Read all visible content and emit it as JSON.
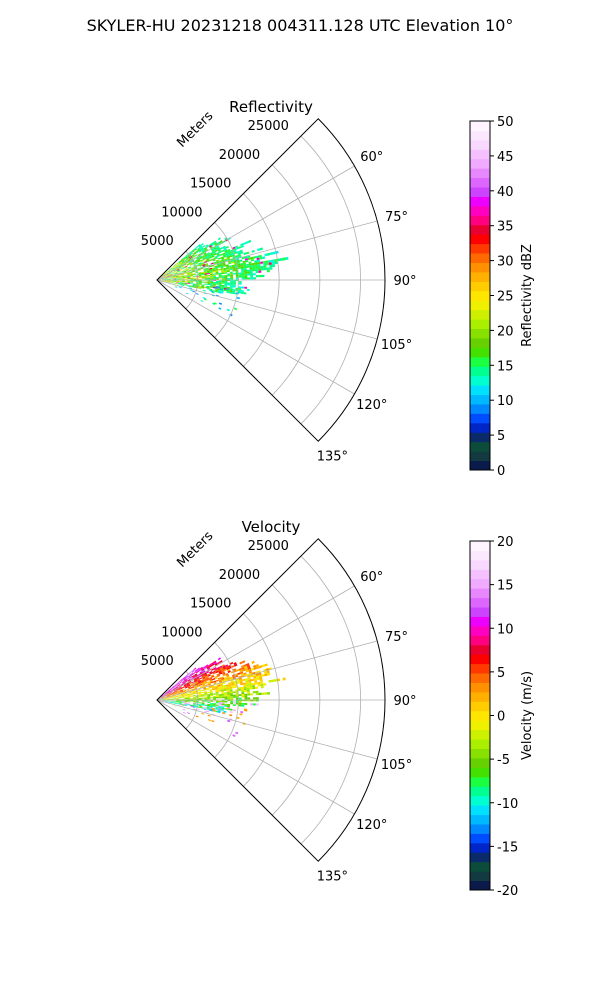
{
  "figure_title": "SKYLER-HU  20231218  004311.128 UTC Elevation 10°",
  "polar_axes": {
    "radial_label": "Meters",
    "radial_ticks": [
      "5000",
      "10000",
      "15000",
      "20000",
      "25000"
    ],
    "angle_ticks": [
      "60°",
      "75°",
      "90°",
      "105°",
      "120°",
      "135°"
    ]
  },
  "chart_data": [
    {
      "type": "heatmap",
      "projection": "polar-sector",
      "title": "Reflectivity",
      "theta_range_deg": [
        45,
        135
      ],
      "r_range_m": [
        0,
        28000
      ],
      "grid": true,
      "colorbar": {
        "label": "Reflectivity dBZ",
        "range": [
          0,
          50
        ],
        "ticks": [
          "0",
          "5",
          "10",
          "15",
          "20",
          "25",
          "30",
          "35",
          "40",
          "45",
          "50"
        ],
        "colors": [
          "#0a1a4a",
          "#123a40",
          "#0b4d3a",
          "#0a2a6a",
          "#0026c8",
          "#004cff",
          "#0088ff",
          "#00b8ff",
          "#00e0ff",
          "#00ffd0",
          "#00ff90",
          "#1aff40",
          "#44e000",
          "#66d000",
          "#88e000",
          "#aaee00",
          "#ccf000",
          "#eef000",
          "#ffe600",
          "#ffcc00",
          "#ffb000",
          "#ff9000",
          "#ff6a00",
          "#ff3a00",
          "#ff0000",
          "#e80030",
          "#ff0080",
          "#ff00c0",
          "#ee00ff",
          "#cc44ff",
          "#dd66ff",
          "#e888ff",
          "#f0aaff",
          "#f4c0ff",
          "#f8d8ff",
          "#fbe8ff",
          "#fff4ff"
        ],
        "legend_placement": "right"
      },
      "echo_region": {
        "theta_deg": [
          50,
          101
        ],
        "r_m": [
          0,
          14500
        ],
        "dominant_values_dbz": [
          12,
          28
        ]
      }
    },
    {
      "type": "heatmap",
      "projection": "polar-sector",
      "title": "Velocity",
      "theta_range_deg": [
        45,
        135
      ],
      "r_range_m": [
        0,
        28000
      ],
      "grid": true,
      "colorbar": {
        "label": "Velocity (m/s)",
        "range": [
          -20,
          20
        ],
        "ticks": [
          "-20",
          "-15",
          "-10",
          "-5",
          "0",
          "5",
          "10",
          "15",
          "20"
        ],
        "colors": [
          "#0a1a4a",
          "#123a40",
          "#0b4d3a",
          "#0a2a6a",
          "#0026c8",
          "#004cff",
          "#0088ff",
          "#00b8ff",
          "#00e0ff",
          "#00ffd0",
          "#00ff90",
          "#1aff40",
          "#44e000",
          "#66d000",
          "#88e000",
          "#aaee00",
          "#ccf000",
          "#eef000",
          "#ffe600",
          "#ffcc00",
          "#ffb000",
          "#ff9000",
          "#ff6a00",
          "#ff3a00",
          "#ff0000",
          "#e80030",
          "#ff0080",
          "#ff00c0",
          "#ee00ff",
          "#cc44ff",
          "#dd66ff",
          "#e888ff",
          "#f0aaff",
          "#f4c0ff",
          "#f8d8ff",
          "#fbe8ff",
          "#fff4ff"
        ],
        "legend_placement": "right"
      },
      "echo_region": {
        "theta_deg": [
          50,
          101
        ],
        "r_m": [
          0,
          14500
        ],
        "dominant_values_ms": [
          -10,
          12
        ]
      }
    }
  ]
}
